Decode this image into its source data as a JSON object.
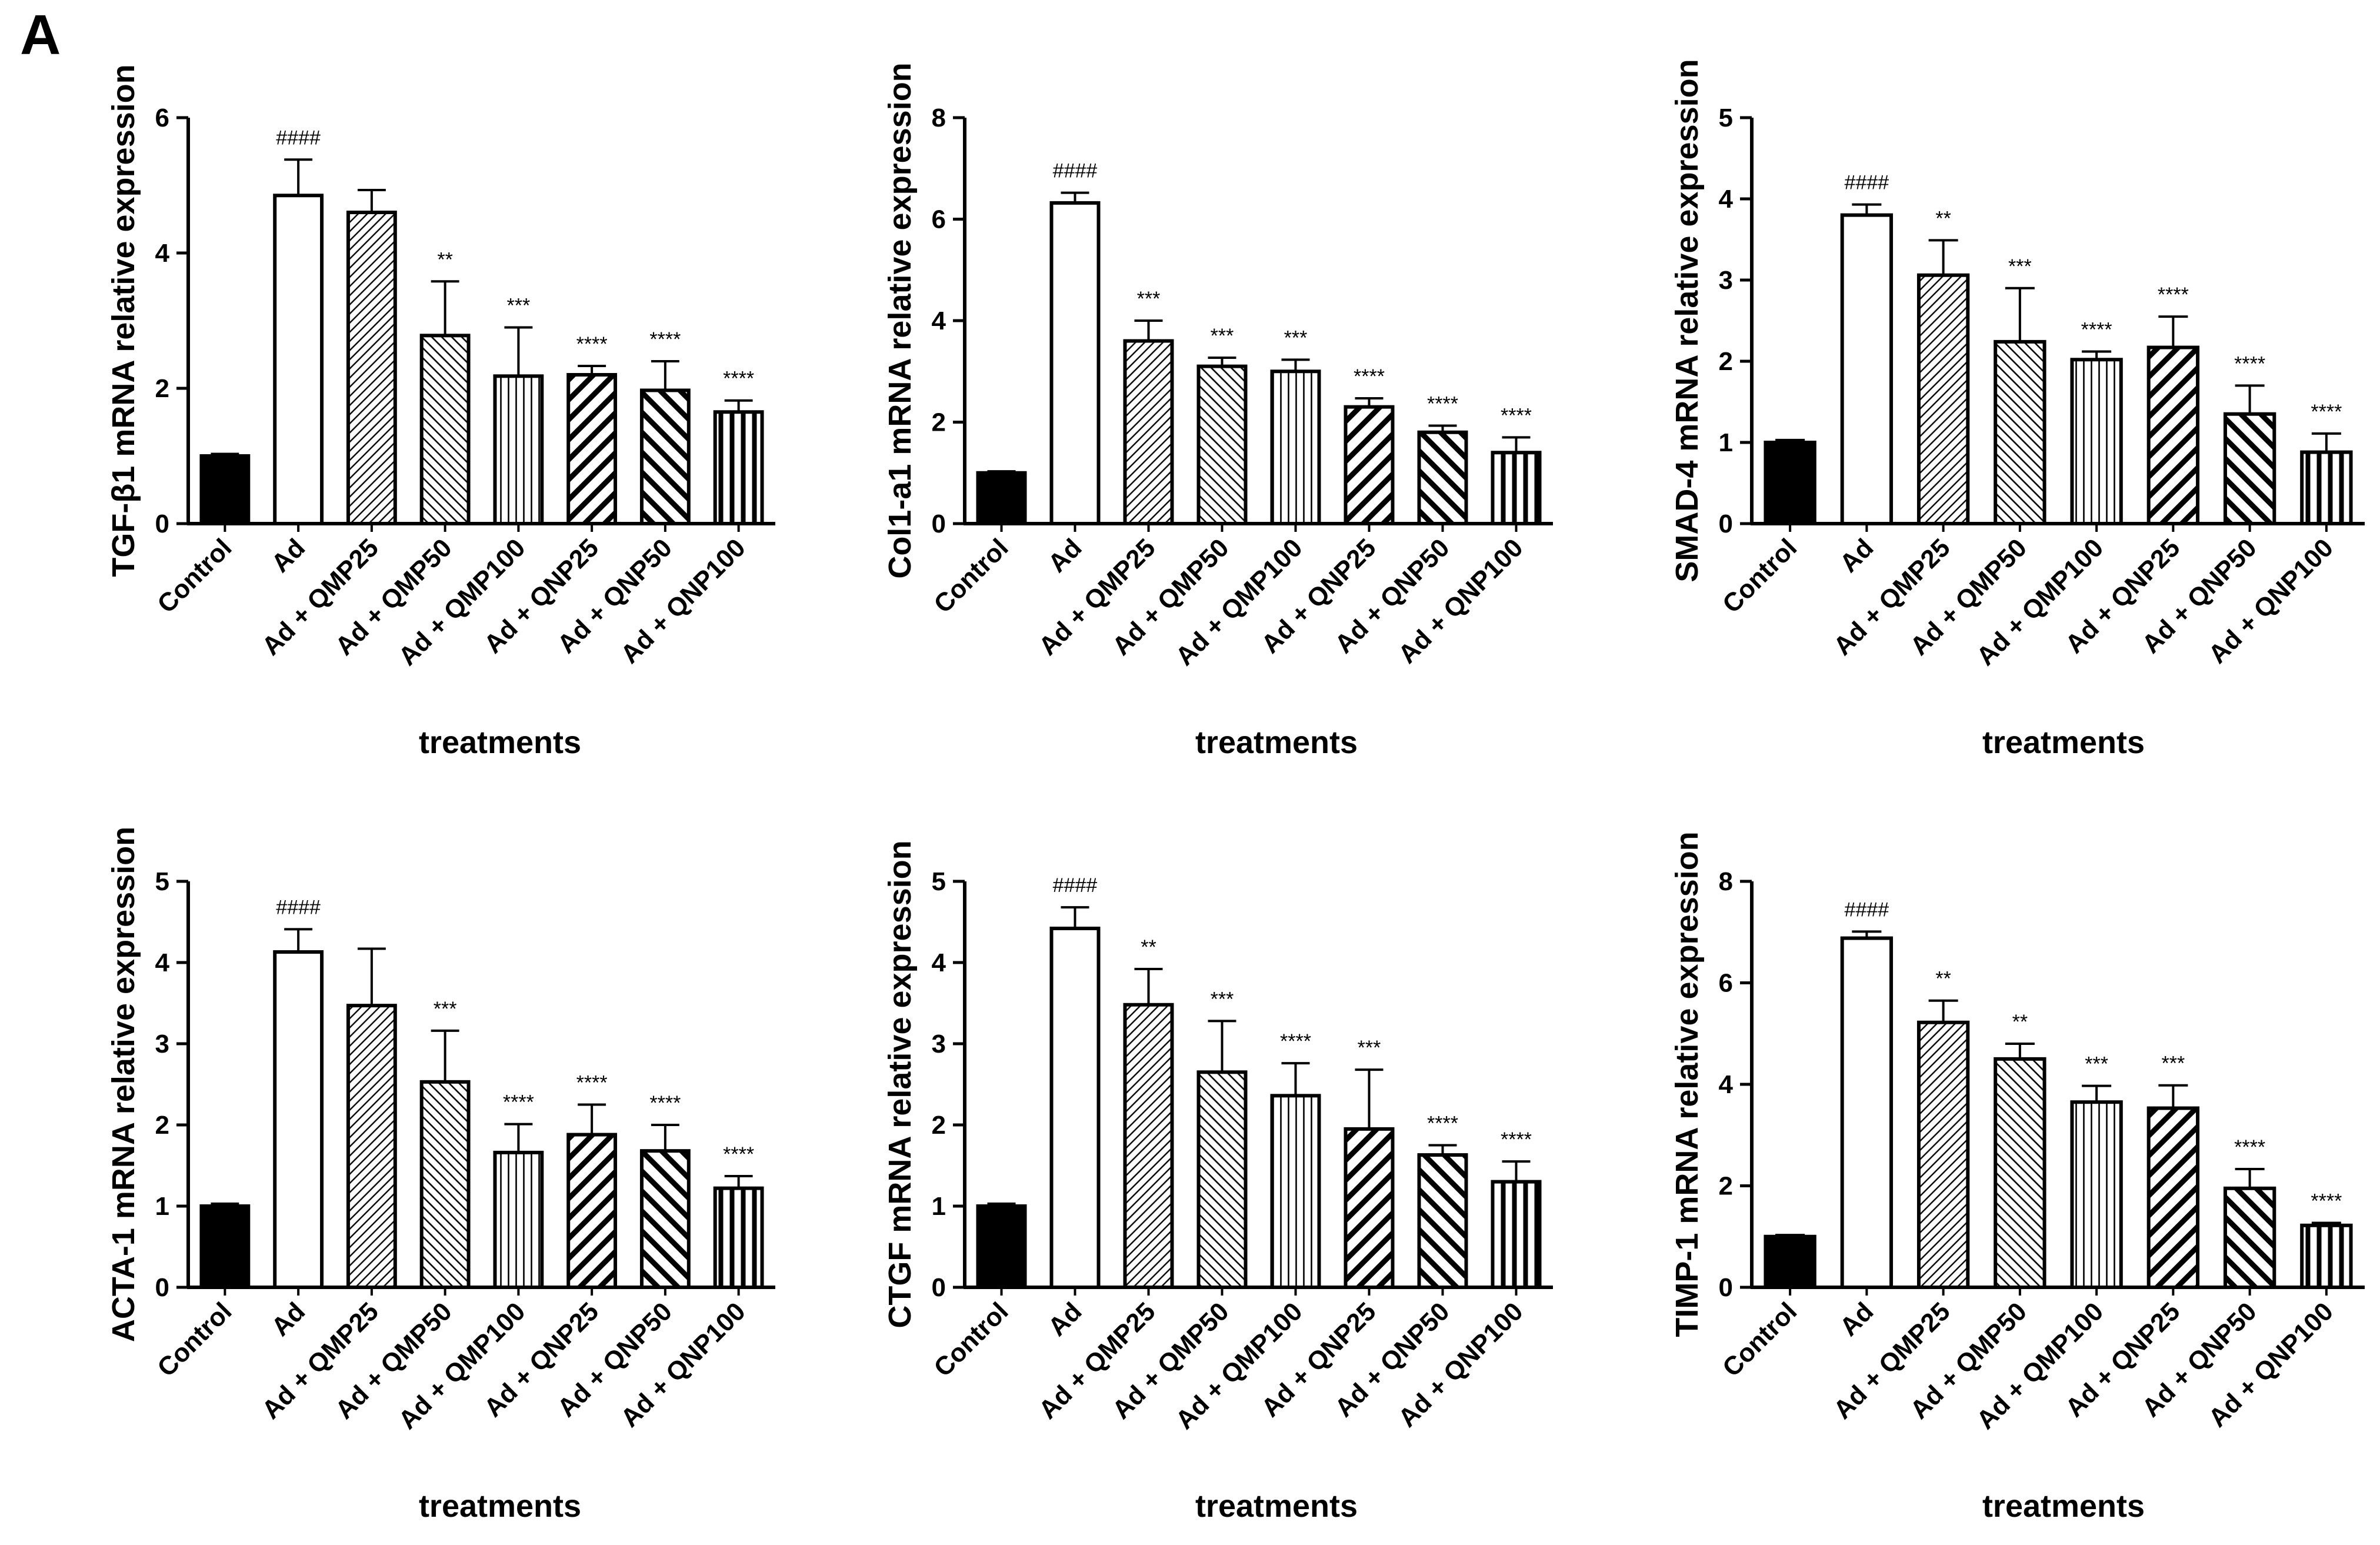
{
  "figure": {
    "panel_label": "A"
  },
  "chart_data": [
    {
      "type": "bar",
      "ylabel": "TGF-β1 mRNA relative expression",
      "xlabel": "treatments",
      "ylim": [
        0,
        6
      ],
      "yticks": [
        0,
        2,
        4,
        6
      ],
      "categories": [
        "Control",
        "Ad",
        "Ad + QMP25",
        "Ad + QMP50",
        "Ad + QMP100",
        "Ad + QNP25",
        "Ad + QNP50",
        "Ad + QNP100"
      ],
      "values": [
        1.0,
        4.85,
        4.6,
        2.78,
        2.18,
        2.2,
        1.97,
        1.65
      ],
      "errors": [
        0.03,
        0.53,
        0.33,
        0.8,
        0.72,
        0.13,
        0.43,
        0.17
      ],
      "annotations": [
        "",
        "####",
        "",
        "**",
        "***",
        "****",
        "****",
        "****"
      ]
    },
    {
      "type": "bar",
      "ylabel": "Col1-a1 mRNA relative expression",
      "xlabel": "treatments",
      "ylim": [
        0,
        8
      ],
      "yticks": [
        0,
        2,
        4,
        6,
        8
      ],
      "categories": [
        "Control",
        "Ad",
        "Ad + QMP25",
        "Ad + QMP50",
        "Ad + QMP100",
        "Ad + QNP25",
        "Ad + QNP50",
        "Ad + QNP100"
      ],
      "values": [
        1.0,
        6.32,
        3.6,
        3.1,
        3.0,
        2.3,
        1.8,
        1.4
      ],
      "errors": [
        0.03,
        0.2,
        0.4,
        0.17,
        0.23,
        0.17,
        0.13,
        0.3
      ],
      "annotations": [
        "",
        "####",
        "***",
        "***",
        "***",
        "****",
        "****",
        "****"
      ]
    },
    {
      "type": "bar",
      "ylabel": "SMAD-4 mRNA relative expression",
      "xlabel": "treatments",
      "ylim": [
        0,
        5
      ],
      "yticks": [
        0,
        1,
        2,
        3,
        4,
        5
      ],
      "categories": [
        "Control",
        "Ad",
        "Ad + QMP25",
        "Ad + QMP50",
        "Ad + QMP100",
        "Ad + QNP25",
        "Ad + QNP50",
        "Ad + QNP100"
      ],
      "values": [
        1.0,
        3.8,
        3.06,
        2.24,
        2.02,
        2.17,
        1.35,
        0.88
      ],
      "errors": [
        0.03,
        0.13,
        0.43,
        0.66,
        0.1,
        0.38,
        0.35,
        0.23
      ],
      "annotations": [
        "",
        "####",
        "**",
        "***",
        "****",
        "****",
        "****",
        "****"
      ]
    },
    {
      "type": "bar",
      "ylabel": "ACTA-1 mRNA relative expression",
      "xlabel": "treatments",
      "ylim": [
        0,
        5
      ],
      "yticks": [
        0,
        1,
        2,
        3,
        4,
        5
      ],
      "categories": [
        "Control",
        "Ad",
        "Ad + QMP25",
        "Ad + QMP50",
        "Ad + QMP100",
        "Ad + QNP25",
        "Ad + QNP50",
        "Ad + QNP100"
      ],
      "values": [
        1.0,
        4.13,
        3.47,
        2.53,
        1.66,
        1.88,
        1.68,
        1.22
      ],
      "errors": [
        0.03,
        0.28,
        0.7,
        0.63,
        0.35,
        0.37,
        0.32,
        0.15
      ],
      "annotations": [
        "",
        "####",
        "",
        "***",
        "****",
        "****",
        "****",
        "****"
      ]
    },
    {
      "type": "bar",
      "ylabel": "CTGF mRNA relative expression",
      "xlabel": "treatments",
      "ylim": [
        0,
        5
      ],
      "yticks": [
        0,
        1,
        2,
        3,
        4,
        5
      ],
      "categories": [
        "Control",
        "Ad",
        "Ad + QMP25",
        "Ad + QMP50",
        "Ad + QMP100",
        "Ad + QNP25",
        "Ad + QNP50",
        "Ad + QNP100"
      ],
      "values": [
        1.0,
        4.42,
        3.48,
        2.65,
        2.36,
        1.95,
        1.63,
        1.3
      ],
      "errors": [
        0.03,
        0.26,
        0.44,
        0.63,
        0.4,
        0.73,
        0.12,
        0.25
      ],
      "annotations": [
        "",
        "####",
        "**",
        "***",
        "****",
        "***",
        "****",
        "****"
      ]
    },
    {
      "type": "bar",
      "ylabel": "TIMP-1 mRNA relative expression",
      "xlabel": "treatments",
      "ylim": [
        0,
        8
      ],
      "yticks": [
        0,
        2,
        4,
        6,
        8
      ],
      "categories": [
        "Control",
        "Ad",
        "Ad + QMP25",
        "Ad + QMP50",
        "Ad + QMP100",
        "Ad + QNP25",
        "Ad + QNP50",
        "Ad + QNP100"
      ],
      "values": [
        1.0,
        6.88,
        5.22,
        4.5,
        3.65,
        3.53,
        1.95,
        1.22
      ],
      "errors": [
        0.03,
        0.13,
        0.43,
        0.3,
        0.32,
        0.45,
        0.38,
        0.05
      ],
      "annotations": [
        "",
        "####",
        "**",
        "**",
        "***",
        "***",
        "****",
        "****"
      ]
    }
  ]
}
